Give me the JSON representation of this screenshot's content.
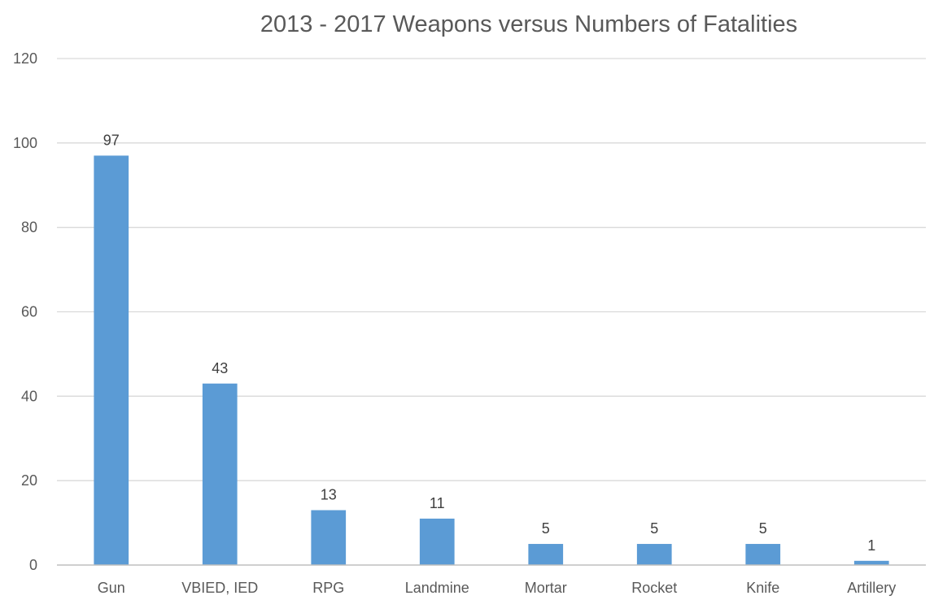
{
  "chart_data": {
    "type": "bar",
    "title": "2013 - 2017 Weapons versus Numbers of Fatalities",
    "xlabel": "",
    "ylabel": "",
    "categories": [
      "Gun",
      "VBIED, IED",
      "RPG",
      "Landmine",
      "Mortar",
      "Rocket",
      "Knife",
      "Artillery"
    ],
    "values": [
      97,
      43,
      13,
      11,
      5,
      5,
      5,
      1
    ],
    "ylim": [
      0,
      120
    ],
    "yticks": [
      0,
      20,
      40,
      60,
      80,
      100,
      120
    ],
    "grid": true,
    "legend": "none",
    "bar_color": "#5B9BD5",
    "gridline_color": "#D9D9D9",
    "axis_color": "#BFBFBF"
  }
}
